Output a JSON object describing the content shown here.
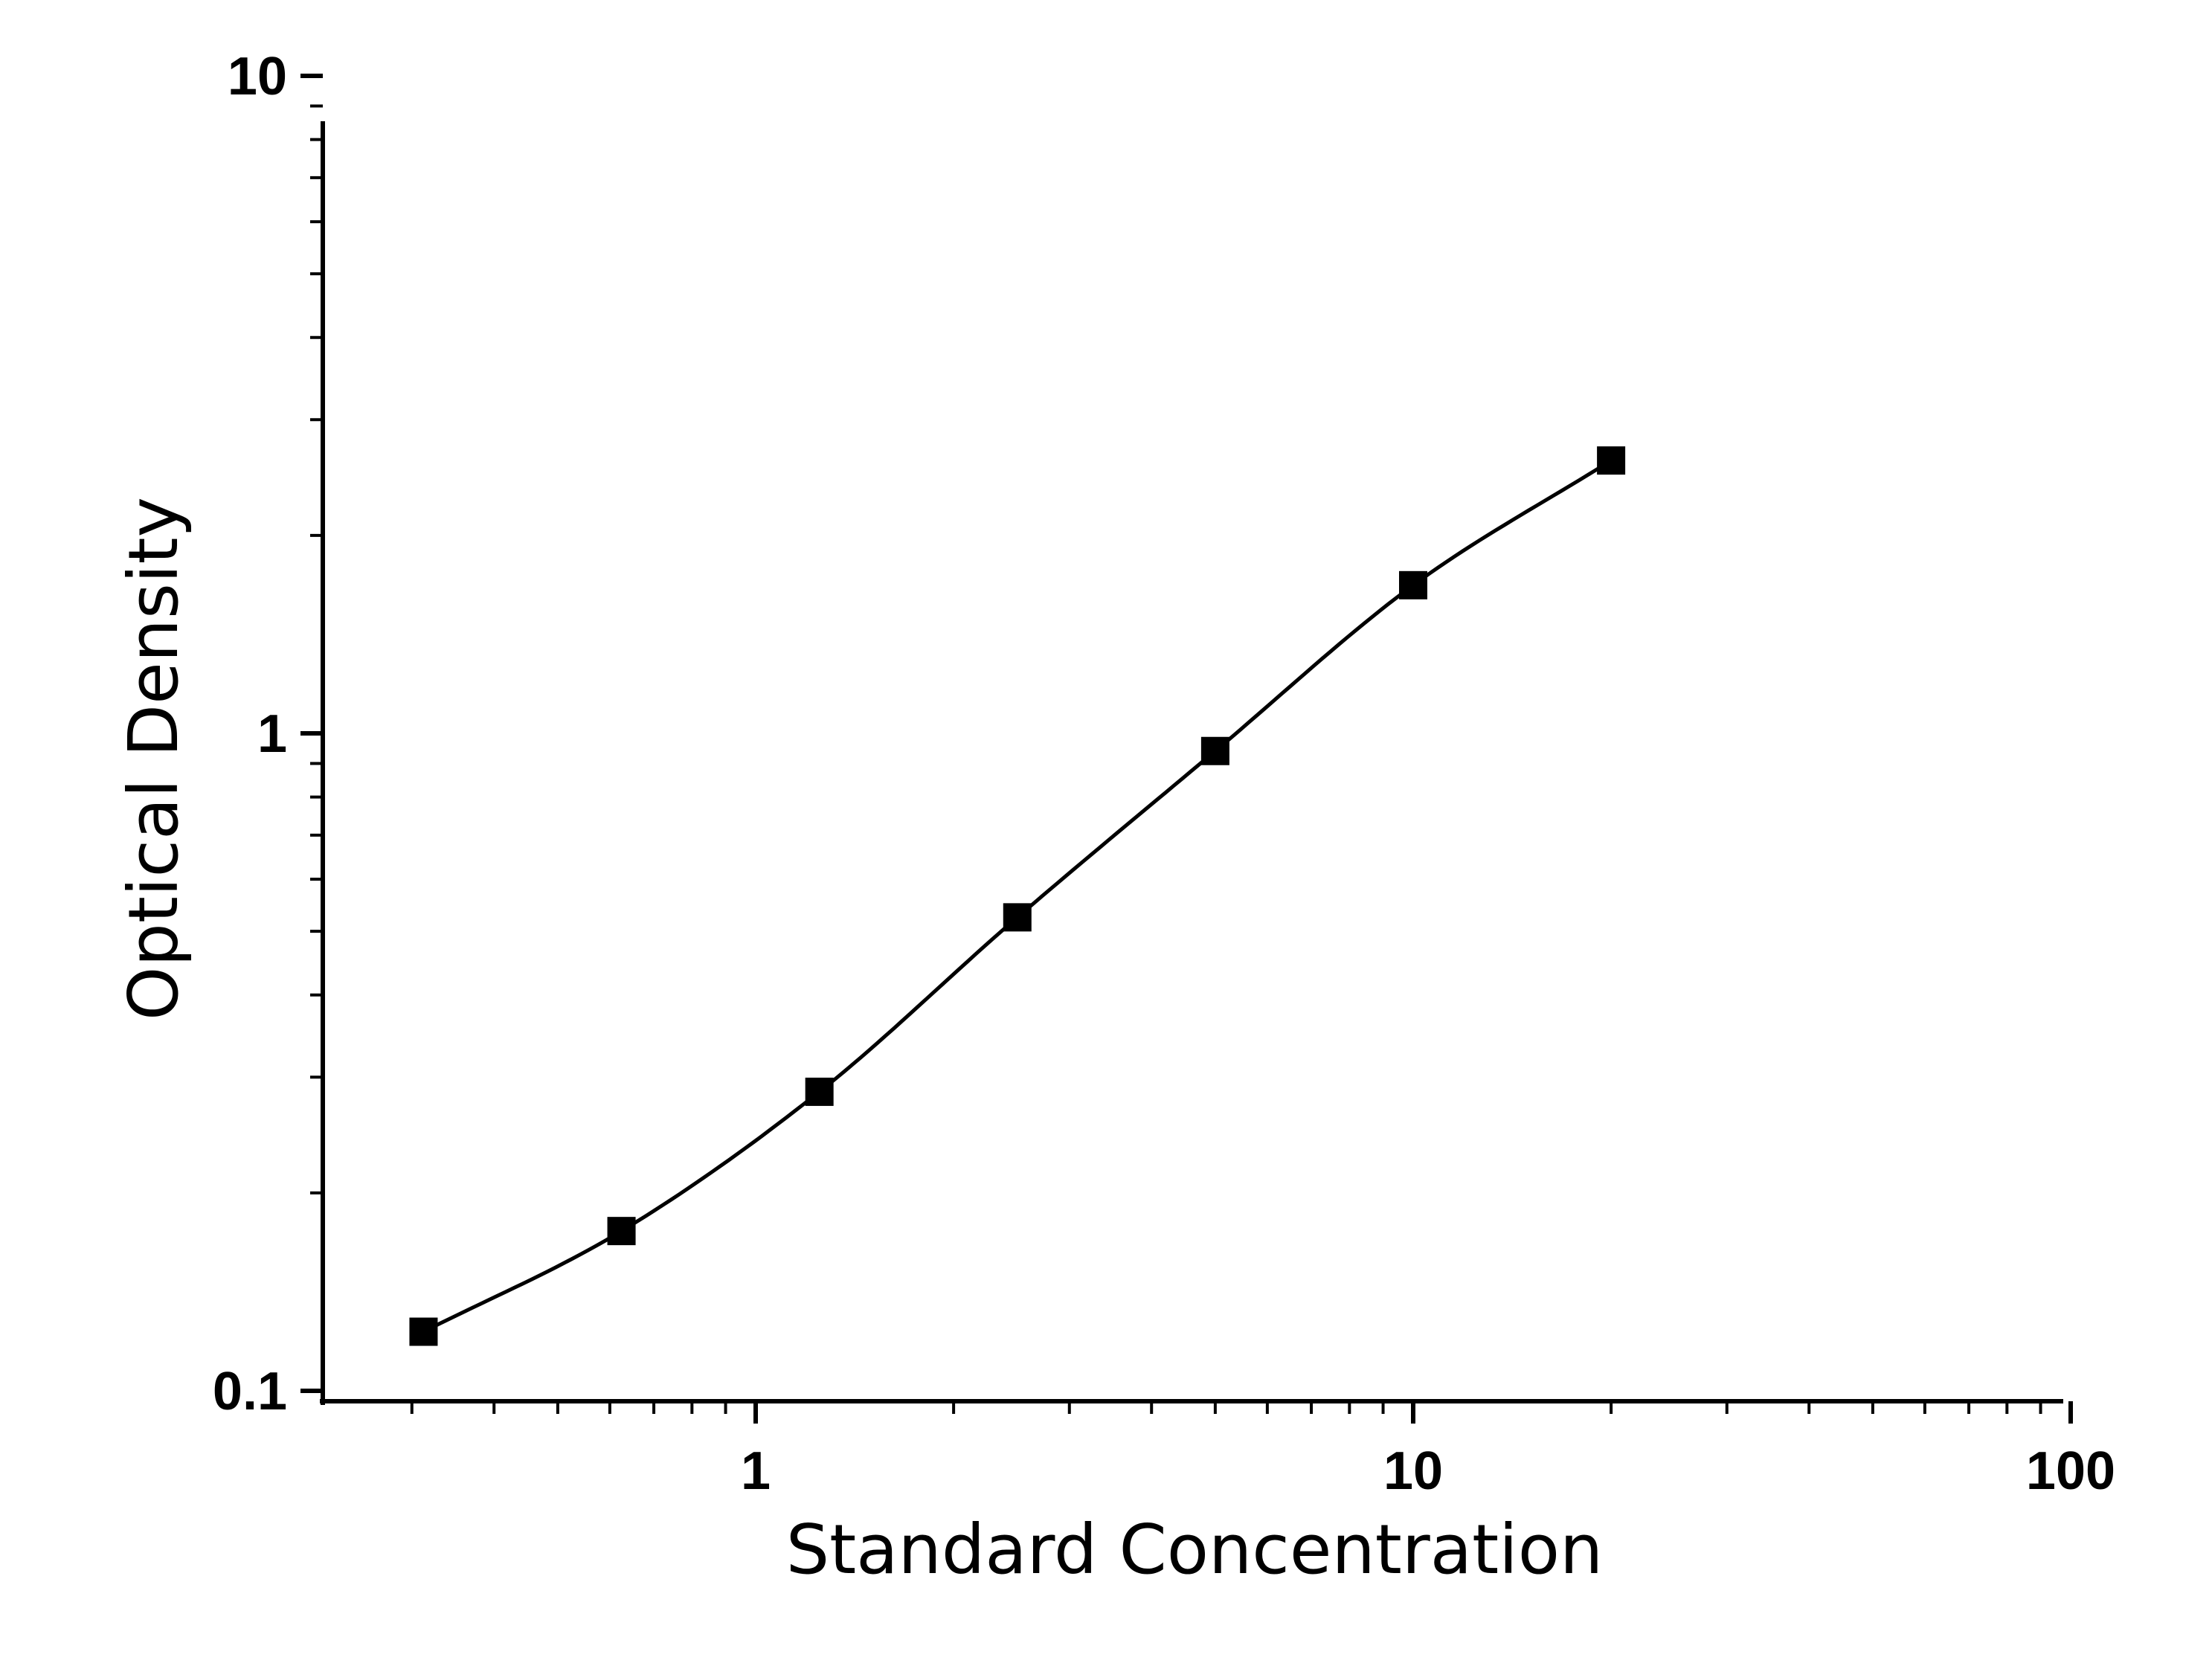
{
  "chart_data": {
    "type": "scatter",
    "title": "",
    "xlabel": "Standard Concentration",
    "ylabel": "Optical Density",
    "xscale": "log",
    "yscale": "log",
    "xlim": [
      0.22,
      100
    ],
    "ylim": [
      0.1,
      10
    ],
    "x_ticks": [
      "1",
      "10",
      "100"
    ],
    "y_ticks": [
      "0.1",
      "1",
      "10"
    ],
    "grid": false,
    "legend": "none",
    "fit_curve": "four-parameter logistic",
    "marker": "square",
    "color": "#000000",
    "series": [
      {
        "x": [
          0.3125,
          0.625,
          1.25,
          2.5,
          5,
          10,
          20
        ],
        "y": [
          0.123,
          0.175,
          0.285,
          0.525,
          0.94,
          1.68,
          2.6
        ]
      }
    ]
  }
}
